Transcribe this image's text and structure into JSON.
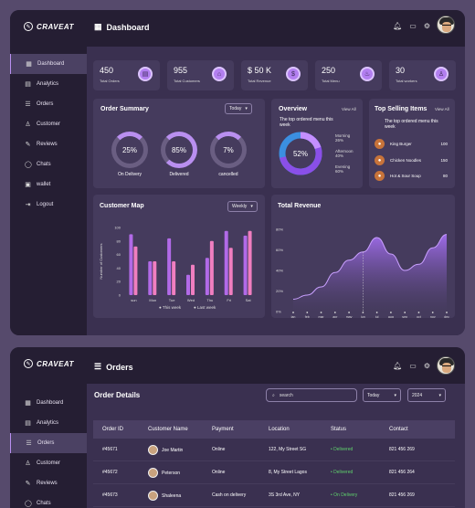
{
  "brand": "CRAVEAT",
  "dashboard": {
    "title": "Dashboard",
    "nav": [
      "Dashboard",
      "Analytics",
      "Orders",
      "Customer",
      "Reviews",
      "Chats",
      "wallet",
      "Logout"
    ],
    "stats": [
      {
        "value": "450",
        "label": "Total Orders",
        "icon": "clipboard-icon"
      },
      {
        "value": "955",
        "label": "Total Customers",
        "icon": "home-icon"
      },
      {
        "value": "$ 50 K",
        "label": "Total Revenue",
        "icon": "coin-icon"
      },
      {
        "value": "250",
        "label": "Total Menu",
        "icon": "cup-icon"
      },
      {
        "value": "30",
        "label": "Total workers",
        "icon": "person-icon"
      }
    ],
    "order_summary": {
      "title": "Order Summary",
      "filter": "Today",
      "rings": [
        {
          "pct": "25%",
          "label": "On Delivery",
          "value": 0.25
        },
        {
          "pct": "85%",
          "label": "Delivered",
          "value": 0.85
        },
        {
          "pct": "7%",
          "label": "cancelled",
          "value": 0.07
        }
      ]
    },
    "overview": {
      "title": "Overview",
      "view_all": "View All",
      "subtitle": "The top ordered menu this week",
      "center": "52%",
      "legend": [
        {
          "label": "Morning 26%"
        },
        {
          "label": "Afternoon 40%"
        },
        {
          "label": "Evening 60%"
        }
      ]
    },
    "top_selling": {
      "title": "Top Selling Items",
      "view_all": "View All",
      "subtitle": "The top ordered menu this week",
      "items": [
        {
          "name": "King Burger",
          "qty": "100"
        },
        {
          "name": "Chicken Noodles",
          "qty": "150"
        },
        {
          "name": "Hot & Sour Soup",
          "qty": "80"
        }
      ]
    },
    "customer_map": {
      "title": "Customer Map",
      "filter": "Weekly",
      "legend_a": "This week",
      "legend_b": "Last week",
      "ylabel": "Number of Customers"
    },
    "total_revenue": {
      "title": "Total Revenue"
    }
  },
  "chart_data": [
    {
      "type": "bar",
      "title": "Customer Map",
      "ylabel": "Number of Customers",
      "categories": [
        "sun",
        "Mon",
        "Tue",
        "Wed",
        "Thu",
        "Fri",
        "Sat"
      ],
      "yticks": [
        "100",
        "80",
        "60",
        "40",
        "20",
        "0"
      ],
      "ylim": [
        0,
        100
      ],
      "series": [
        {
          "name": "This week",
          "values": [
            90,
            50,
            84,
            30,
            55,
            95,
            88
          ]
        },
        {
          "name": "Last week",
          "values": [
            72,
            50,
            50,
            45,
            80,
            70,
            95
          ]
        }
      ]
    },
    {
      "type": "area",
      "title": "Total Revenue",
      "categories": [
        "jan",
        "feb",
        "mar",
        "apr",
        "may",
        "jun",
        "jul",
        "aug",
        "sep",
        "oct",
        "nov",
        "dec"
      ],
      "yticks": [
        "80%",
        "60%",
        "40%",
        "20%",
        "0%"
      ],
      "ylim": [
        0,
        80
      ],
      "values": [
        12,
        16,
        24,
        38,
        50,
        58,
        72,
        56,
        40,
        46,
        62,
        75
      ]
    }
  ],
  "orders": {
    "title": "Orders",
    "section": "Order Details",
    "search_placeholder": "search",
    "filter_a": "Today",
    "filter_b": "2024",
    "nav": [
      "Dashboard",
      "Analytics",
      "Orders",
      "Customer",
      "Reviews",
      "Chats"
    ],
    "columns": [
      "Order ID",
      "Customer Name",
      "Payment",
      "Location",
      "Status",
      "Contact"
    ],
    "rows": [
      {
        "id": "#45671",
        "name": "Joe Martin",
        "payment": "Online",
        "location": "122, My Street SG",
        "status": "Delivered",
        "contact": "821 456 269"
      },
      {
        "id": "#45672",
        "name": "Peterson",
        "payment": "Online",
        "location": "8, My Street Lagos",
        "status": "Delivered",
        "contact": "821 456 264"
      },
      {
        "id": "#45673",
        "name": "Shaleena",
        "payment": "Cash on delivery",
        "location": "3S 3rd Ave, NY",
        "status": "On Delivery",
        "contact": "821 456 269"
      }
    ]
  }
}
